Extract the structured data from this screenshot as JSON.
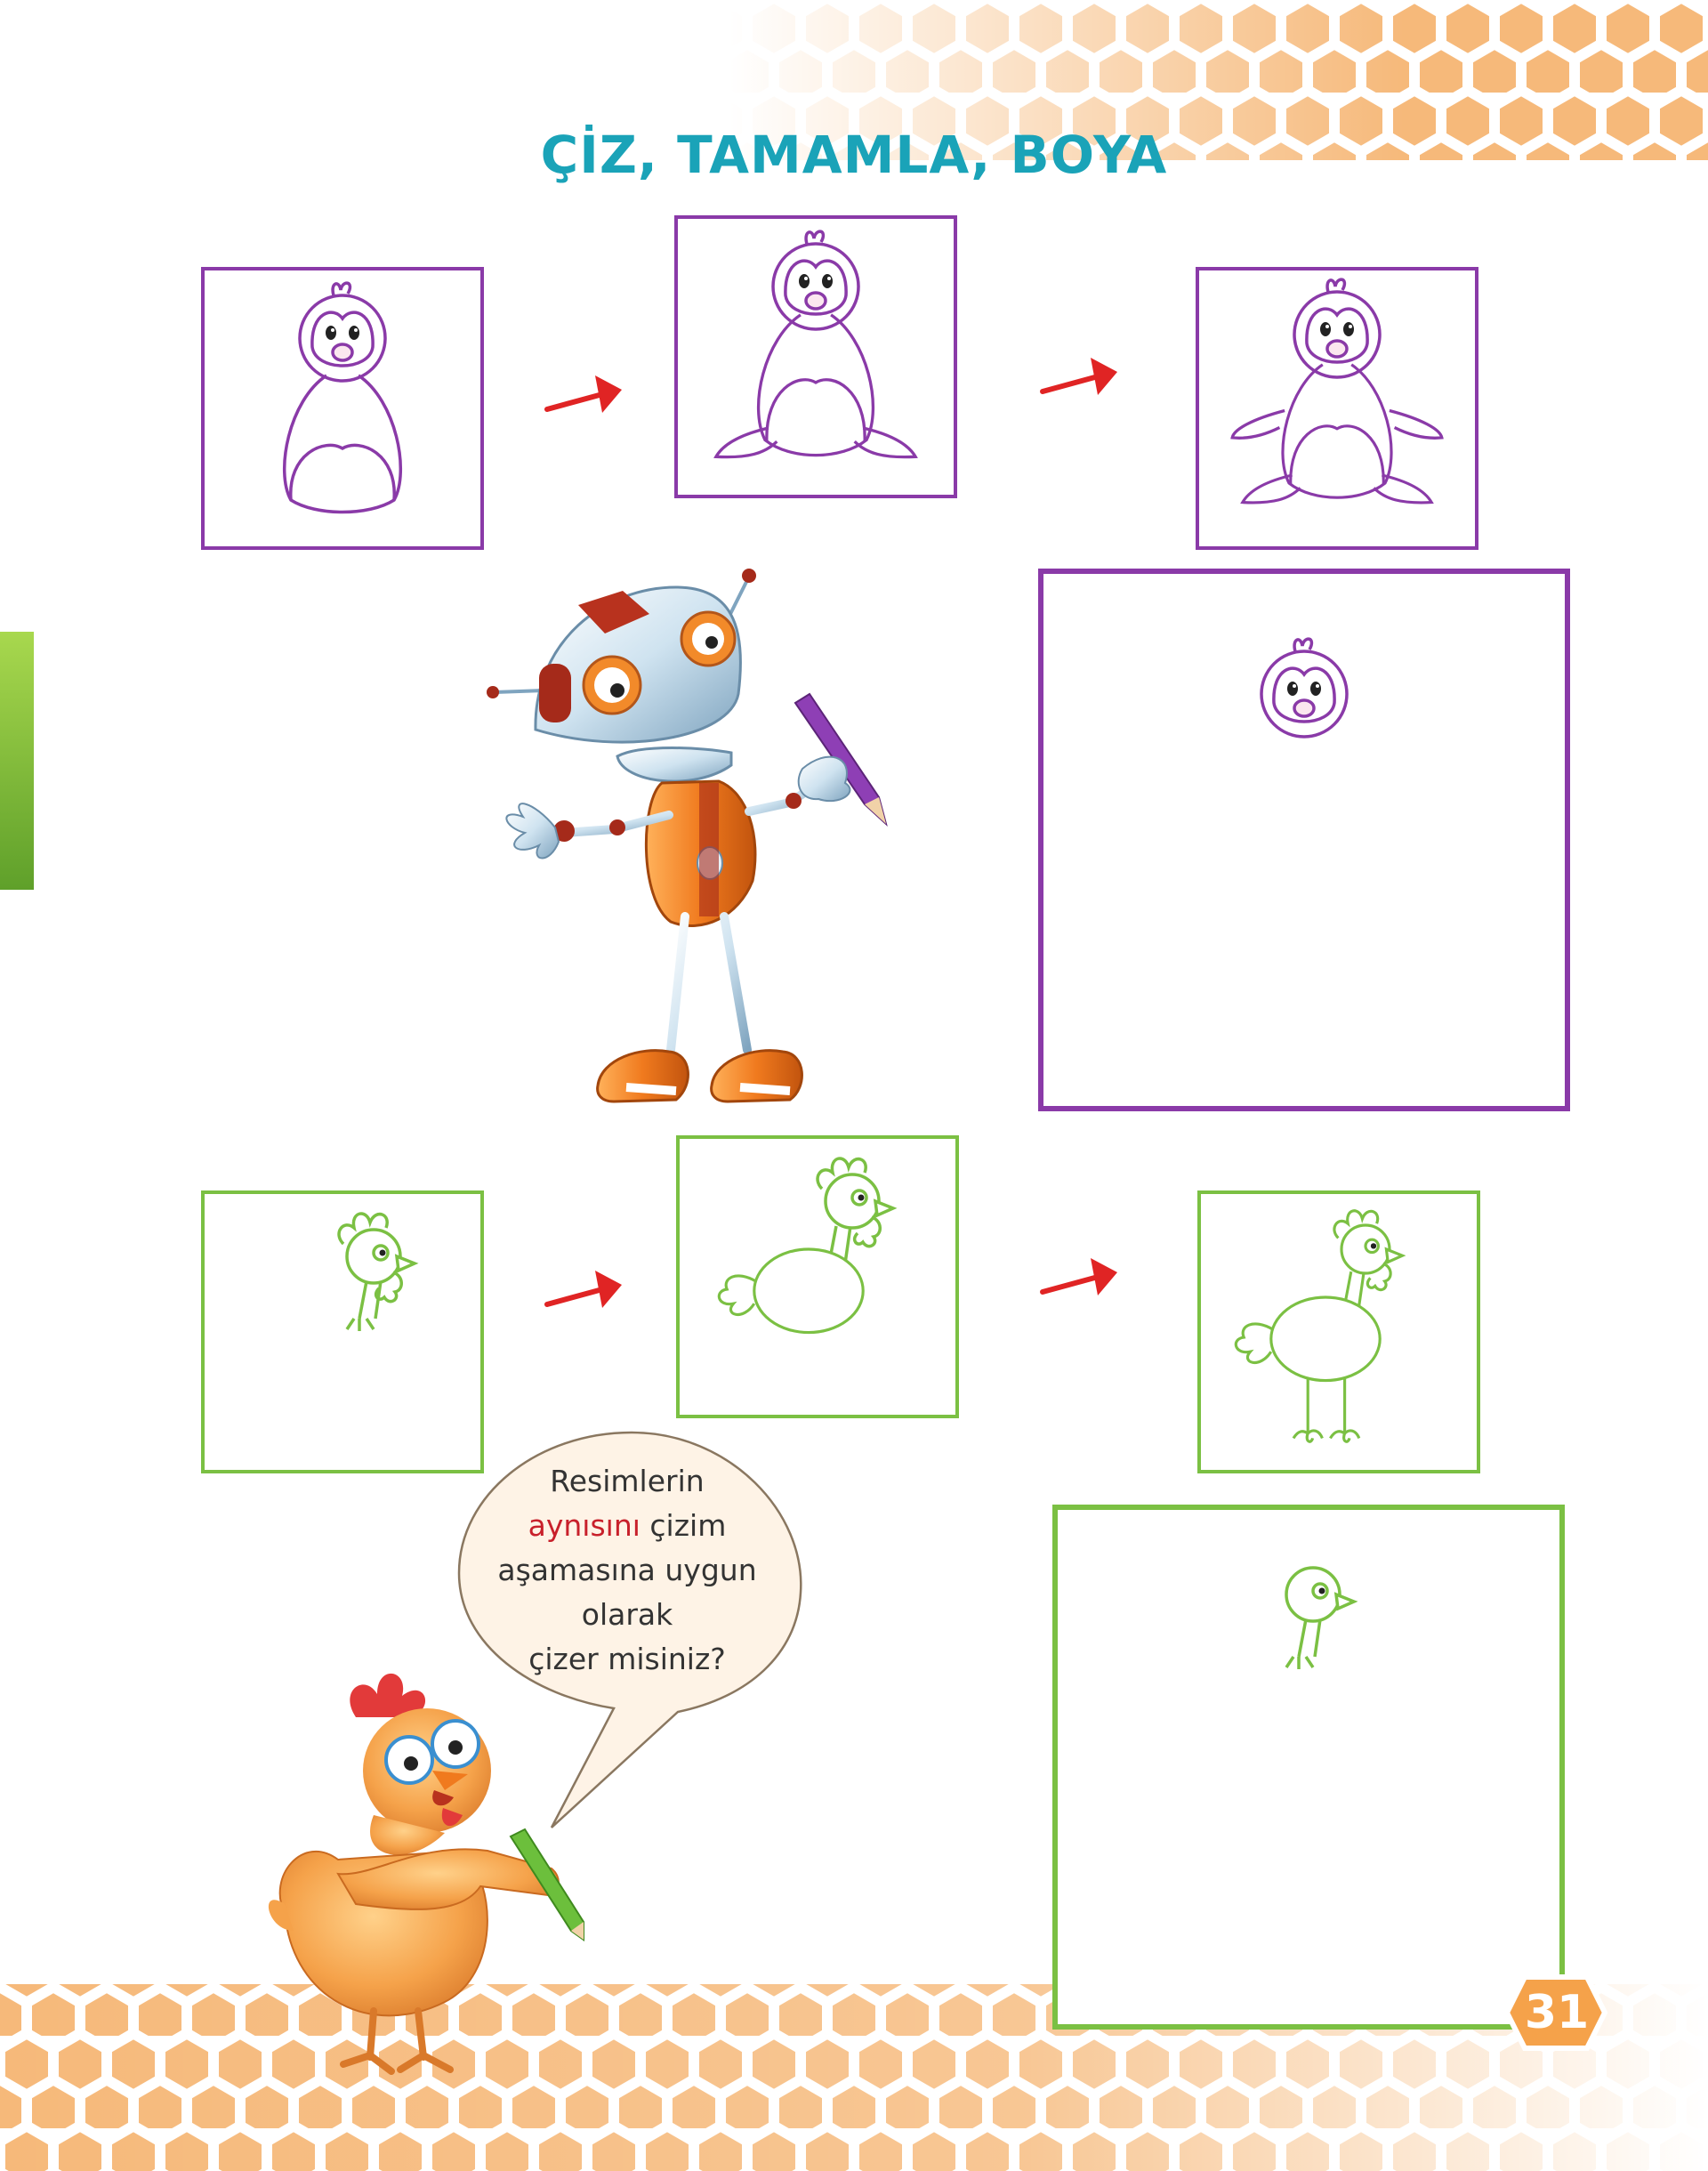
{
  "title": "ÇİZ, TAMAMLA, BOYA",
  "speech": {
    "line1": "Resimlerin",
    "highlight": "aynısını",
    "line2_rest": " çizim",
    "line3": "aşamasına  uygun",
    "line4": "olarak",
    "line5": "çizer misiniz?"
  },
  "page_number": "31",
  "colors": {
    "title": "#1aa3b8",
    "penguin": "#8a3aa8",
    "chicken": "#7bc043",
    "arrow": "#e02424",
    "honeycomb": "#f6b97a",
    "highlight": "#c8202b"
  },
  "icons": [
    "penguin-icon",
    "chicken-icon",
    "robot-icon",
    "hen-character-icon",
    "arrow-icon",
    "pencil-icon"
  ]
}
